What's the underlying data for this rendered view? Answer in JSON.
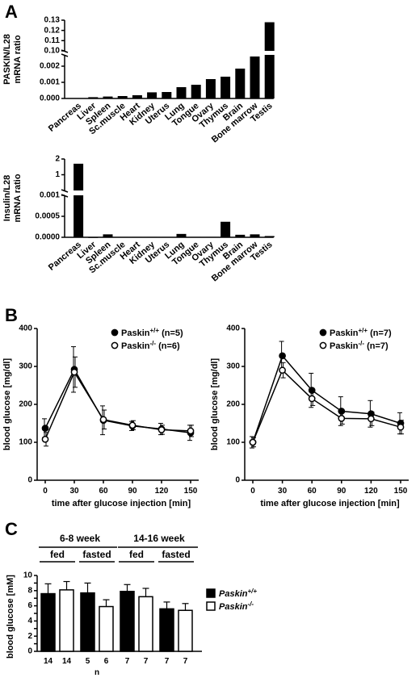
{
  "panel_letters": [
    "A",
    "B",
    "C"
  ],
  "chart_data": [
    {
      "panel": "A",
      "type": "bar",
      "ylabel": [
        "PASKIN/L28",
        "mRNA ratio"
      ],
      "categories": [
        "Pancreas",
        "Liver",
        "Spleen",
        "Sc.muscle",
        "Heart",
        "Kidney",
        "Uterus",
        "Lung",
        "Tongue",
        "Ovary",
        "Thymus",
        "Brain",
        "Bone marrow",
        "Testis"
      ],
      "values": [
        2e-05,
        8e-05,
        0.00012,
        0.00015,
        0.0002,
        0.00038,
        0.0004,
        0.0007,
        0.00085,
        0.0012,
        0.00135,
        0.00185,
        0.0026,
        0.128
      ],
      "axis_break": true,
      "lower_ticks": [
        "0.000",
        "0.001",
        "0.002"
      ],
      "upper_ticks": [
        "0.10",
        "0.11",
        "0.12",
        "0.13"
      ],
      "ylim_lower": [
        0,
        0.0027
      ],
      "ylim_upper": [
        0.1,
        0.13
      ]
    },
    {
      "panel": "A",
      "type": "bar",
      "ylabel": [
        "Insulin/L28",
        "mRNA ratio"
      ],
      "categories": [
        "Pancreas",
        "Liver",
        "Spleen",
        "Sc.muscle",
        "Heart",
        "Kidney",
        "Uterus",
        "Lung",
        "Tongue",
        "Ovary",
        "Thymus",
        "Brain",
        "Bone marrow",
        "Testis"
      ],
      "values": [
        1.7,
        0.0,
        7e-05,
        1e-05,
        1e-05,
        1e-05,
        1e-05,
        8e-05,
        1e-05,
        1e-05,
        0.00037,
        6e-05,
        7e-05,
        3e-05
      ],
      "axis_break": true,
      "lower_ticks": [
        "0.0000",
        "0.0005",
        "0.001"
      ],
      "upper_ticks": [
        "1",
        "2"
      ],
      "ylim_lower": [
        0,
        0.001
      ],
      "ylim_upper": [
        0,
        2
      ]
    },
    {
      "panel": "B",
      "type": "line",
      "xlabel": "time after glucose injection [min]",
      "ylabel": "blood glucose [mg/dl]",
      "x": [
        0,
        30,
        60,
        90,
        120,
        150
      ],
      "ylim": [
        0,
        400
      ],
      "yticks": [
        "0",
        "100",
        "200",
        "300",
        "400"
      ],
      "xticks": [
        "0",
        "30",
        "60",
        "90",
        "120",
        "150"
      ],
      "series": [
        {
          "name": "Paskin+/+ (n=5)",
          "filled": true,
          "values": [
            137,
            292,
            158,
            143,
            135,
            125
          ],
          "err": [
            25,
            60,
            38,
            12,
            15,
            20
          ]
        },
        {
          "name": "Paskin-/- (n=6)",
          "filled": false,
          "values": [
            108,
            285,
            160,
            145,
            133,
            130
          ],
          "err": [
            18,
            40,
            25,
            12,
            12,
            15
          ]
        }
      ]
    },
    {
      "panel": "B",
      "type": "line",
      "xlabel": "time after glucose injection [min]",
      "ylabel": "blood glucose [mg/dl]",
      "x": [
        0,
        30,
        60,
        90,
        120,
        150
      ],
      "ylim": [
        0,
        400
      ],
      "yticks": [
        "0",
        "100",
        "200",
        "300",
        "400"
      ],
      "xticks": [
        "0",
        "30",
        "60",
        "90",
        "120",
        "150"
      ],
      "series": [
        {
          "name": "Paskin+/+ (n=7)",
          "filled": true,
          "values": [
            100,
            328,
            237,
            182,
            175,
            150
          ],
          "err": [
            15,
            38,
            45,
            38,
            35,
            28
          ]
        },
        {
          "name": "Paskin-/- (n=7)",
          "filled": false,
          "values": [
            100,
            290,
            215,
            163,
            162,
            140
          ],
          "err": [
            12,
            20,
            18,
            15,
            18,
            18
          ]
        }
      ]
    },
    {
      "panel": "C",
      "type": "bar",
      "ylabel": "blood glucose [mM]",
      "xlabel": "n",
      "ylim": [
        0,
        10
      ],
      "yticks": [
        "0",
        "1",
        "2",
        "3",
        "4",
        "5",
        "6",
        "7",
        "8",
        "9",
        "10"
      ],
      "age_groups": [
        "6-8 week",
        "14-16 week"
      ],
      "conditions": [
        "fed",
        "fasted",
        "fed",
        "fasted"
      ],
      "n_labels": [
        "14",
        "14",
        "5",
        "6",
        "7",
        "7",
        "7",
        "7"
      ],
      "series": [
        {
          "name": "Paskin+/+",
          "filled": true,
          "values": [
            7.6,
            7.7,
            7.9,
            5.6
          ],
          "err": [
            1.3,
            1.3,
            0.9,
            0.9
          ]
        },
        {
          "name": "Paskin-/-",
          "filled": false,
          "values": [
            8.1,
            5.9,
            7.2,
            5.4
          ],
          "err": [
            1.1,
            0.9,
            1.1,
            0.9
          ]
        }
      ]
    }
  ],
  "legend_B_left": [
    {
      "base": "Paskin",
      "sup": "+/+",
      "rest": " (n=5)"
    },
    {
      "base": "Paskin",
      "sup": "-/-",
      "rest": " (n=6)"
    }
  ],
  "legend_B_right": [
    {
      "base": "Paskin",
      "sup": "+/+",
      "rest": " (n=7)"
    },
    {
      "base": "Paskin",
      "sup": "-/-",
      "rest": " (n=7)"
    }
  ],
  "legend_C": [
    {
      "base": "Paskin",
      "sup": "+/+"
    },
    {
      "base": "Paskin",
      "sup": "-/-"
    }
  ]
}
